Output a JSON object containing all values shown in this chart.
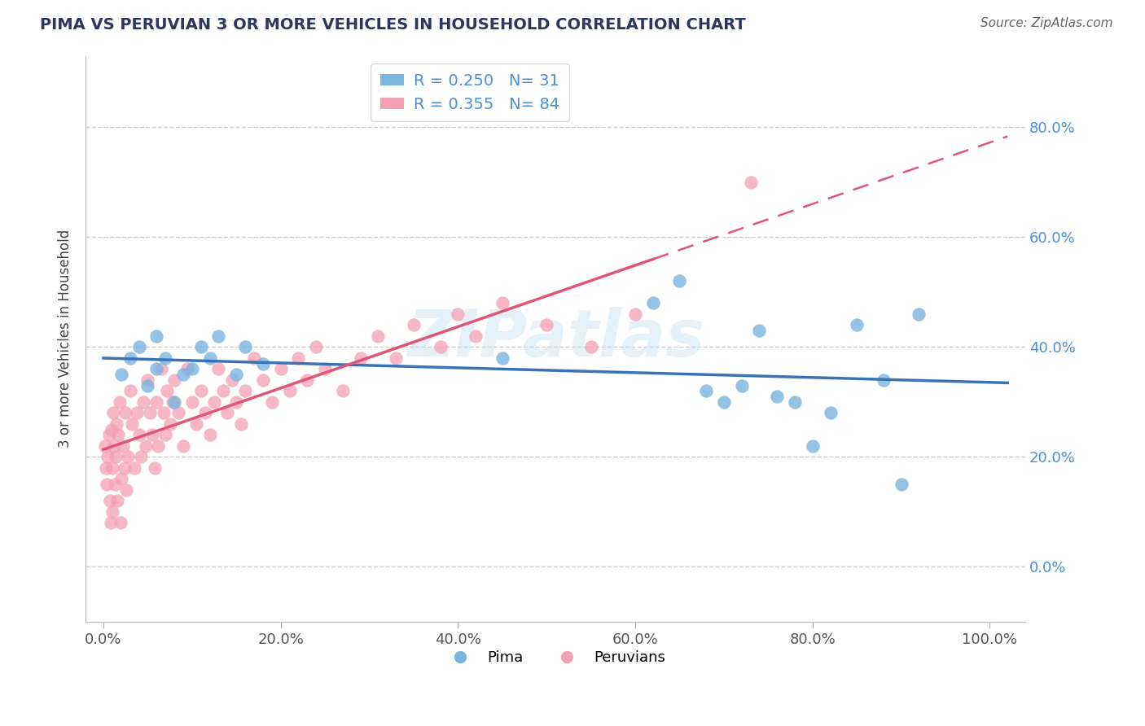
{
  "title": "PIMA VS PERUVIAN 3 OR MORE VEHICLES IN HOUSEHOLD CORRELATION CHART",
  "source": "Source: ZipAtlas.com",
  "ylabel": "3 or more Vehicles in Household",
  "ylim_min": -0.1,
  "ylim_max": 0.93,
  "yticks": [
    0.0,
    0.2,
    0.4,
    0.6,
    0.8
  ],
  "ytick_labels": [
    "0.0%",
    "20.0%",
    "40.0%",
    "60.0%",
    "80.0%"
  ],
  "xticks": [
    0.0,
    0.2,
    0.4,
    0.6,
    0.8,
    1.0
  ],
  "xtick_labels": [
    "0.0%",
    "20.0%",
    "40.0%",
    "60.0%",
    "80.0%",
    "100.0%"
  ],
  "pima_color": "#7ab5e0",
  "peruvian_color": "#f4a0b5",
  "pima_line_color": "#3a72b5",
  "peruvian_line_color": "#e05575",
  "pima_R": 0.25,
  "pima_N": 31,
  "peruvian_R": 0.355,
  "peruvian_N": 84,
  "watermark": "ZIPatlas",
  "background_color": "#ffffff",
  "grid_color": "#cccccc",
  "title_color": "#2d3561",
  "tick_color": "#4a90d9",
  "pima_x": [
    0.02,
    0.03,
    0.04,
    0.05,
    0.06,
    0.06,
    0.07,
    0.08,
    0.09,
    0.1,
    0.11,
    0.12,
    0.13,
    0.15,
    0.16,
    0.18,
    0.45,
    0.62,
    0.65,
    0.68,
    0.7,
    0.72,
    0.74,
    0.76,
    0.78,
    0.8,
    0.82,
    0.85,
    0.88,
    0.9,
    0.92
  ],
  "pima_y": [
    0.35,
    0.38,
    0.4,
    0.33,
    0.36,
    0.42,
    0.38,
    0.3,
    0.35,
    0.36,
    0.4,
    0.38,
    0.42,
    0.35,
    0.4,
    0.37,
    0.38,
    0.48,
    0.52,
    0.32,
    0.3,
    0.33,
    0.43,
    0.31,
    0.3,
    0.22,
    0.28,
    0.44,
    0.34,
    0.15,
    0.46
  ],
  "peru_x": [
    0.002,
    0.003,
    0.004,
    0.005,
    0.006,
    0.007,
    0.008,
    0.009,
    0.01,
    0.01,
    0.011,
    0.012,
    0.013,
    0.014,
    0.015,
    0.016,
    0.017,
    0.018,
    0.019,
    0.02,
    0.022,
    0.024,
    0.025,
    0.026,
    0.028,
    0.03,
    0.032,
    0.035,
    0.038,
    0.04,
    0.042,
    0.045,
    0.048,
    0.05,
    0.052,
    0.055,
    0.058,
    0.06,
    0.062,
    0.065,
    0.068,
    0.07,
    0.072,
    0.075,
    0.078,
    0.08,
    0.085,
    0.09,
    0.095,
    0.1,
    0.105,
    0.11,
    0.115,
    0.12,
    0.125,
    0.13,
    0.135,
    0.14,
    0.145,
    0.15,
    0.155,
    0.16,
    0.17,
    0.18,
    0.19,
    0.2,
    0.21,
    0.22,
    0.23,
    0.24,
    0.25,
    0.27,
    0.29,
    0.31,
    0.33,
    0.35,
    0.38,
    0.4,
    0.42,
    0.45,
    0.5,
    0.55,
    0.6,
    0.73
  ],
  "peru_y": [
    0.22,
    0.18,
    0.15,
    0.2,
    0.24,
    0.12,
    0.08,
    0.25,
    0.18,
    0.1,
    0.28,
    0.22,
    0.15,
    0.2,
    0.26,
    0.12,
    0.24,
    0.3,
    0.08,
    0.16,
    0.22,
    0.18,
    0.28,
    0.14,
    0.2,
    0.32,
    0.26,
    0.18,
    0.28,
    0.24,
    0.2,
    0.3,
    0.22,
    0.34,
    0.28,
    0.24,
    0.18,
    0.3,
    0.22,
    0.36,
    0.28,
    0.24,
    0.32,
    0.26,
    0.3,
    0.34,
    0.28,
    0.22,
    0.36,
    0.3,
    0.26,
    0.32,
    0.28,
    0.24,
    0.3,
    0.36,
    0.32,
    0.28,
    0.34,
    0.3,
    0.26,
    0.32,
    0.38,
    0.34,
    0.3,
    0.36,
    0.32,
    0.38,
    0.34,
    0.4,
    0.36,
    0.32,
    0.38,
    0.42,
    0.38,
    0.44,
    0.4,
    0.46,
    0.42,
    0.48,
    0.44,
    0.4,
    0.46,
    0.7
  ]
}
